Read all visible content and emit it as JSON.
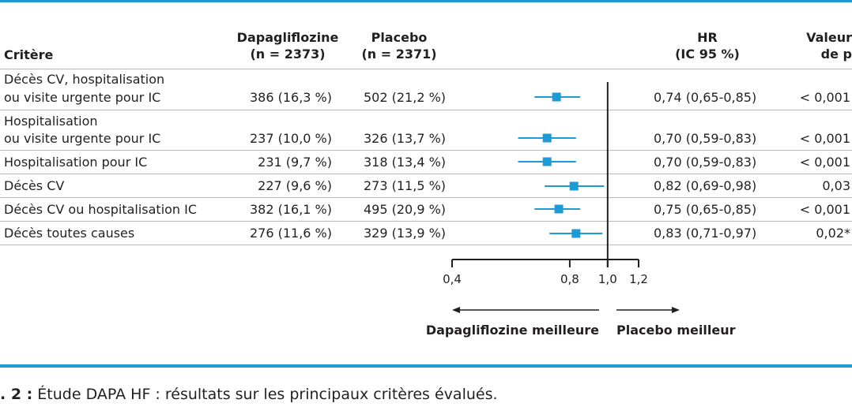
{
  "header": {
    "criterion": "Critère",
    "dapa_line1": "Dapagliflozine",
    "dapa_line2": "(n = 2373)",
    "placebo_line1": "Placebo",
    "placebo_line2": "(n = 2371)",
    "hr_line1": "HR",
    "hr_line2": "(IC 95 %)",
    "p_line1": "Valeur",
    "p_line2": "de p"
  },
  "rows": [
    {
      "label_lines": [
        "Décès CV, hospitalisation",
        "ou visite urgente pour IC"
      ],
      "dapa": "386 (16,3 %)",
      "placebo": "502 (21,2 %)",
      "hr_text": "0,74 (0,65-0,85)",
      "p": "< 0,001"
    },
    {
      "label_lines": [
        "Hospitalisation",
        "ou visite urgente pour IC"
      ],
      "dapa": "237 (10,0 %)",
      "placebo": "326 (13,7 %)",
      "hr_text": "0,70 (0,59-0,83)",
      "p": "< 0,001"
    },
    {
      "label_lines": [
        "Hospitalisation pour IC"
      ],
      "dapa": "231 (9,7 %)",
      "placebo": "318 (13,4 %)",
      "hr_text": "0,70 (0,59-0,83)",
      "p": "< 0,001"
    },
    {
      "label_lines": [
        "Décès CV"
      ],
      "dapa": "227 (9,6 %)",
      "placebo": "273 (11,5 %)",
      "hr_text": "0,82 (0,69-0,98)",
      "p": "0,03"
    },
    {
      "label_lines": [
        "Décès CV ou hospitalisation IC"
      ],
      "dapa": "382 (16,1 %)",
      "placebo": "495 (20,9 %)",
      "hr_text": "0,75 (0,65-0,85)",
      "p": "< 0,001"
    },
    {
      "label_lines": [
        "Décès toutes causes"
      ],
      "dapa": "276 (11,6 %)",
      "placebo": "329 (13,9 %)",
      "hr_text": "0,83 (0,71-0,97)",
      "p": "0,02*"
    }
  ],
  "chart_data": {
    "type": "scatter",
    "subtype": "forest-plot",
    "xscale": "log",
    "xlim": [
      0.4,
      1.2
    ],
    "x_ticks": [
      0.4,
      0.8,
      1.0,
      1.2
    ],
    "x_tick_labels": [
      "0,4",
      "0,8",
      "1,0",
      "1,2"
    ],
    "reference_line": 1.0,
    "direction_left": "Dapagliflozine meilleure",
    "direction_right": "Placebo meilleur",
    "points": [
      {
        "hr": 0.74,
        "lo": 0.65,
        "hi": 0.85
      },
      {
        "hr": 0.7,
        "lo": 0.59,
        "hi": 0.83
      },
      {
        "hr": 0.7,
        "lo": 0.59,
        "hi": 0.83
      },
      {
        "hr": 0.82,
        "lo": 0.69,
        "hi": 0.98
      },
      {
        "hr": 0.75,
        "lo": 0.65,
        "hi": 0.85
      },
      {
        "hr": 0.83,
        "lo": 0.71,
        "hi": 0.97
      }
    ],
    "marker_color": "#1e9ad6",
    "line_color": "#231f20"
  },
  "caption": {
    "prefix": ". 2 :",
    "text": " Étude DAPA HF : résultats sur les principaux critères évalués."
  },
  "colors": {
    "accent": "#1e9ad6",
    "text": "#231f20",
    "separator": "#b8b8b8"
  }
}
